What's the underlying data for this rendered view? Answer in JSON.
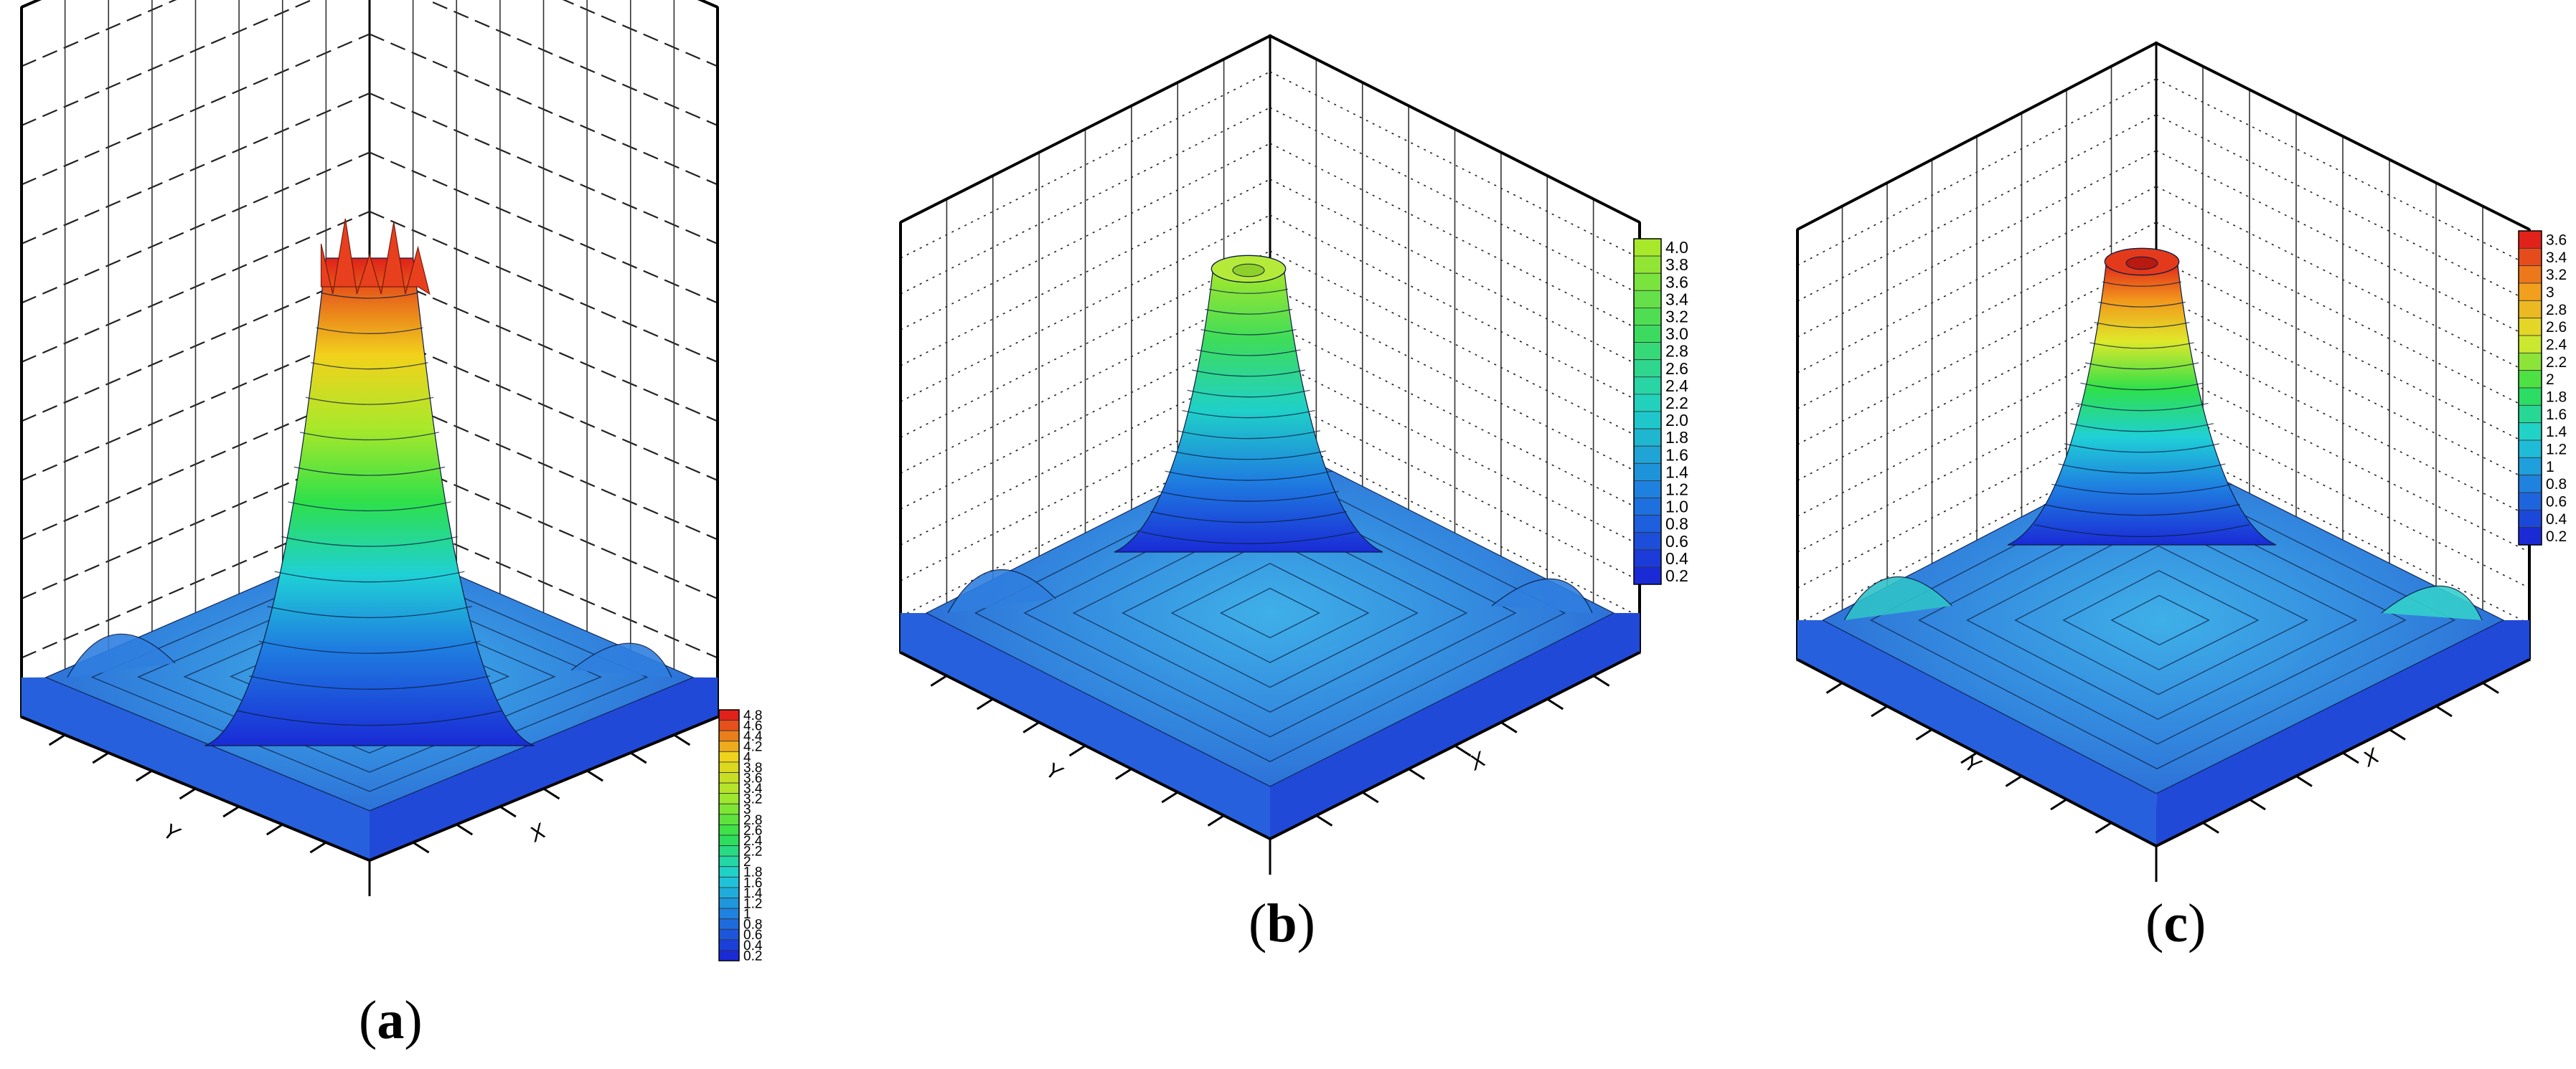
{
  "panels": [
    {
      "id": "a",
      "caption_open": "(",
      "caption_letter": "a",
      "caption_close": ")",
      "peak_style": "crown",
      "gridline_style": "dashed-heavy",
      "chart_data": {
        "type": "surface3d",
        "title": "",
        "xlabel": "X",
        "ylabel": "Y",
        "colorbar_ticks": [
          "4.8",
          "4.6",
          "4.4",
          "4.2",
          "4",
          "3.8",
          "3.6",
          "3.4",
          "3.2",
          "3",
          "2.8",
          "2.6",
          "2.4",
          "2.2",
          "2",
          "1.8",
          "1.6",
          "1.4",
          "1.2",
          "1",
          "0.8",
          "0.6",
          "0.4",
          "0.2"
        ],
        "colorbar_range": [
          0.2,
          4.8
        ],
        "surface_base": 0.6,
        "surface_peak": 4.8,
        "colormap": "blue-cyan-green-yellow-red"
      }
    },
    {
      "id": "b",
      "caption_open": "(",
      "caption_letter": "b",
      "caption_close": ")",
      "peak_style": "crater",
      "gridline_style": "dotted",
      "chart_data": {
        "type": "surface3d",
        "title": "",
        "xlabel": "X",
        "ylabel": "Y",
        "colorbar_ticks": [
          "4.0",
          "3.8",
          "3.6",
          "3.4",
          "3.2",
          "3.0",
          "2.8",
          "2.6",
          "2.4",
          "2.2",
          "2.0",
          "1.8",
          "1.6",
          "1.4",
          "1.2",
          "1.0",
          "0.8",
          "0.6",
          "0.4",
          "0.2"
        ],
        "colorbar_range": [
          0.2,
          4.0
        ],
        "surface_base": 0.6,
        "surface_peak": 3.9,
        "colormap": "blue-cyan-green"
      }
    },
    {
      "id": "c",
      "caption_open": "(",
      "caption_letter": "c",
      "caption_close": ")",
      "peak_style": "crater",
      "gridline_style": "dotted",
      "chart_data": {
        "type": "surface3d",
        "title": "",
        "xlabel": "X",
        "ylabel": "Y",
        "colorbar_ticks": [
          "3.6",
          "3.4",
          "3.2",
          "3",
          "2.8",
          "2.6",
          "2.4",
          "2.2",
          "2",
          "1.8",
          "1.6",
          "1.4",
          "1.2",
          "1",
          "0.8",
          "0.6",
          "0.4",
          "0.2"
        ],
        "colorbar_range": [
          0.2,
          3.6
        ],
        "surface_base": 0.7,
        "surface_peak": 3.6,
        "colormap": "blue-cyan-green-yellow-red"
      }
    }
  ]
}
